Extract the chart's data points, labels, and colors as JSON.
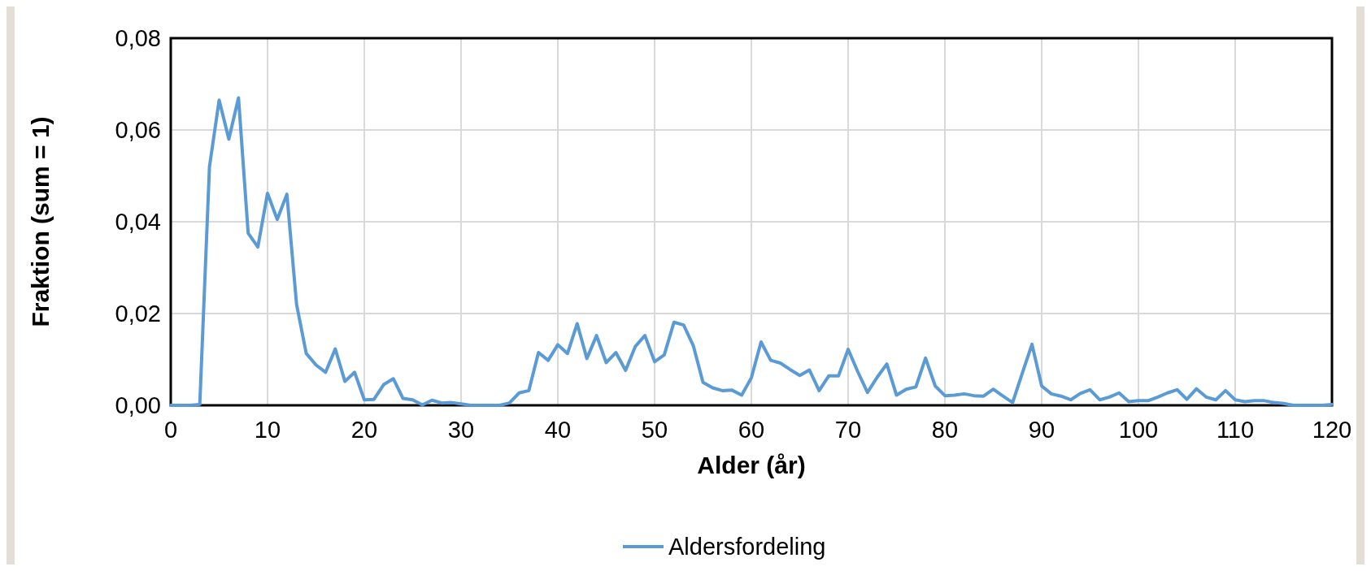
{
  "chart_data": {
    "type": "line",
    "xlabel": "Alder (år)",
    "ylabel": "Fraktion (sum = 1)",
    "x": [
      0,
      1,
      2,
      3,
      4,
      5,
      6,
      7,
      8,
      9,
      10,
      11,
      12,
      13,
      14,
      15,
      16,
      17,
      18,
      19,
      20,
      21,
      22,
      23,
      24,
      25,
      26,
      27,
      28,
      29,
      30,
      31,
      32,
      33,
      34,
      35,
      36,
      37,
      38,
      39,
      40,
      41,
      42,
      43,
      44,
      45,
      46,
      47,
      48,
      49,
      50,
      51,
      52,
      53,
      54,
      55,
      56,
      57,
      58,
      59,
      60,
      61,
      62,
      63,
      64,
      65,
      66,
      67,
      68,
      69,
      70,
      71,
      72,
      73,
      74,
      75,
      76,
      77,
      78,
      79,
      80,
      81,
      82,
      83,
      84,
      85,
      86,
      87,
      88,
      89,
      90,
      91,
      92,
      93,
      94,
      95,
      96,
      97,
      98,
      99,
      100,
      101,
      102,
      103,
      104,
      105,
      106,
      107,
      108,
      109,
      110,
      111,
      112,
      113,
      114,
      115,
      116,
      117,
      118,
      119,
      120
    ],
    "series": [
      {
        "name": "Aldersfordeling",
        "color": "#5b9bd5",
        "values": [
          0,
          0,
          0,
          0.0002,
          0.052,
          0.0665,
          0.058,
          0.067,
          0.0375,
          0.0345,
          0.0462,
          0.0405,
          0.046,
          0.022,
          0.0113,
          0.0088,
          0.0072,
          0.0123,
          0.0052,
          0.0072,
          0.0012,
          0.0013,
          0.0045,
          0.0058,
          0.0015,
          0.0012,
          0.0001,
          0.0011,
          0.0005,
          0.0006,
          0.0003,
          0,
          0,
          0,
          0,
          0.0005,
          0.0027,
          0.0032,
          0.0115,
          0.0098,
          0.0132,
          0.0113,
          0.0178,
          0.0102,
          0.0152,
          0.0093,
          0.0115,
          0.0076,
          0.0128,
          0.0152,
          0.0095,
          0.011,
          0.0181,
          0.0175,
          0.013,
          0.005,
          0.0038,
          0.0032,
          0.0033,
          0.0022,
          0.006,
          0.0138,
          0.0098,
          0.0092,
          0.0078,
          0.0065,
          0.0077,
          0.0032,
          0.0064,
          0.0064,
          0.0122,
          0.0073,
          0.0028,
          0.0061,
          0.009,
          0.0022,
          0.0035,
          0.004,
          0.0103,
          0.0042,
          0.0021,
          0.0022,
          0.0025,
          0.0021,
          0.002,
          0.0035,
          0.002,
          0.0006,
          0.007,
          0.0133,
          0.0042,
          0.0025,
          0.002,
          0.0012,
          0.0026,
          0.0034,
          0.0012,
          0.0018,
          0.0027,
          0.0008,
          0.001,
          0.001,
          0.0018,
          0.0027,
          0.0034,
          0.0013,
          0.0036,
          0.0018,
          0.0012,
          0.0032,
          0.0012,
          0.0008,
          0.001,
          0.001,
          0.0006,
          0.0004,
          0,
          0,
          0,
          0,
          0.0002
        ]
      }
    ],
    "xlim": [
      0,
      120
    ],
    "xticks": [
      0,
      10,
      20,
      30,
      40,
      50,
      60,
      70,
      80,
      90,
      100,
      110,
      120
    ],
    "ylim": [
      0,
      0.08
    ],
    "yticks": [
      {
        "value": 0,
        "label": "0,00"
      },
      {
        "value": 0.02,
        "label": "0,02"
      },
      {
        "value": 0.04,
        "label": "0,04"
      },
      {
        "value": 0.06,
        "label": "0,06"
      },
      {
        "value": 0.08,
        "label": "0,08"
      }
    ],
    "grid": true,
    "legend": "bottom",
    "marker": "none",
    "line_style": "solid"
  }
}
